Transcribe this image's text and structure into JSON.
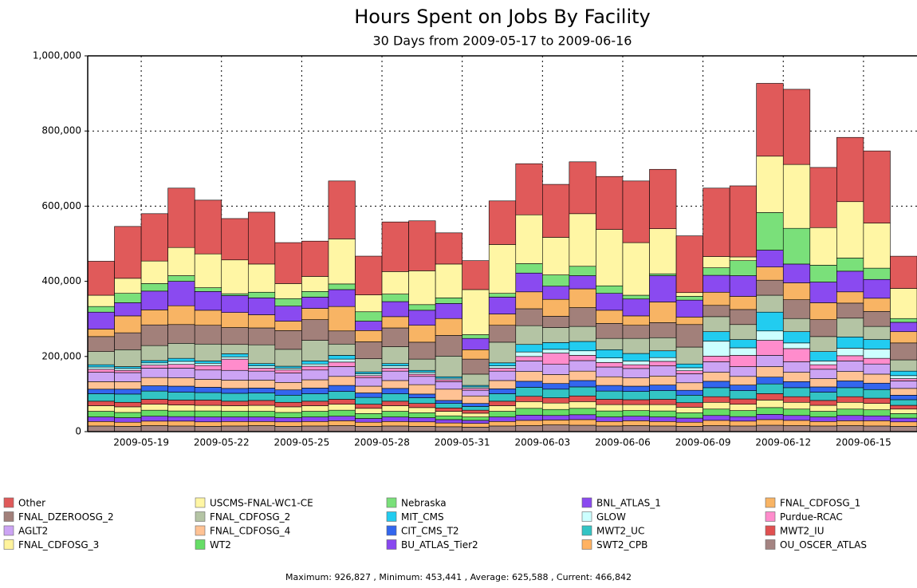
{
  "chart_data": {
    "type": "stacked_bar",
    "title": "Hours Spent on Jobs By Facility",
    "subtitle": "30 Days from 2009-05-17 to 2009-06-16",
    "footer": "Maximum: 926,827 , Minimum: 453,441 , Average: 625,588 , Current: 466,842",
    "categories": [
      null,
      null,
      "2009-05-19",
      null,
      null,
      "2009-05-22",
      null,
      null,
      "2009-05-25",
      null,
      null,
      "2009-05-28",
      null,
      null,
      "2009-05-31",
      null,
      null,
      "2009-06-03",
      null,
      null,
      "2009-06-06",
      null,
      null,
      "2009-06-09",
      null,
      null,
      "2009-06-12",
      null,
      null,
      "2009-06-15",
      null
    ],
    "ylim": [
      0,
      1000000
    ],
    "yticks": [
      0,
      {
        "value": 200000,
        "label": "200,000"
      },
      {
        "value": 400000,
        "label": "400,000"
      },
      {
        "value": 600000,
        "label": "600,000"
      },
      {
        "value": 800000,
        "label": "800,000"
      },
      {
        "value": 1000000,
        "label": "1,000,000"
      }
    ],
    "grid": true,
    "series": [
      {
        "name": "Other",
        "color": "#e05a5a",
        "values": [
          90441,
          138000,
          126000,
          158000,
          143000,
          110000,
          138000,
          109000,
          94000,
          154000,
          103000,
          132000,
          133000,
          83000,
          77000,
          116000,
          136000,
          141000,
          138000,
          141000,
          164000,
          158000,
          151000,
          182000,
          189000,
          193827,
          200000,
          160000,
          171000,
          192000,
          85842
        ]
      },
      {
        "name": "USCMS-FNAL-WC1-CE",
        "color": "#fff6a4",
        "values": [
          30000,
          40000,
          60000,
          75000,
          90000,
          90000,
          75000,
          40000,
          40000,
          120000,
          45000,
          60000,
          90000,
          90000,
          120000,
          130000,
          130000,
          100000,
          140000,
          150000,
          140000,
          120000,
          10000,
          30000,
          10000,
          150000,
          170000,
          100000,
          150000,
          120000,
          80000
        ]
      },
      {
        "name": "Nebraska",
        "color": "#7ae07a",
        "values": [
          15000,
          25000,
          20000,
          15000,
          10000,
          5000,
          15000,
          20000,
          15000,
          15000,
          25000,
          20000,
          15000,
          15000,
          10000,
          10000,
          25000,
          30000,
          25000,
          20000,
          10000,
          5000,
          10000,
          20000,
          40000,
          100000,
          95000,
          45000,
          35000,
          30000,
          10000
        ]
      },
      {
        "name": "BNL_ATLAS_1",
        "color": "#8a4af0",
        "values": [
          45000,
          35000,
          50000,
          65000,
          50000,
          45000,
          45000,
          40000,
          30000,
          45000,
          25000,
          40000,
          40000,
          40000,
          30000,
          45000,
          50000,
          35000,
          35000,
          45000,
          45000,
          70000,
          45000,
          45000,
          55000,
          45000,
          50000,
          55000,
          55000,
          50000,
          25000
        ]
      },
      {
        "name": "FNAL_CDFOSG_1",
        "color": "#f8b464",
        "values": [
          20000,
          45000,
          40000,
          50000,
          40000,
          40000,
          35000,
          25000,
          30000,
          65000,
          30000,
          30000,
          45000,
          45000,
          25000,
          30000,
          45000,
          45000,
          50000,
          35000,
          25000,
          55000,
          20000,
          35000,
          35000,
          35000,
          45000,
          45000,
          30000,
          35000,
          30000
        ]
      },
      {
        "name": "FNAL_DZEROOSG_2",
        "color": "#a2807a",
        "values": [
          40000,
          45000,
          55000,
          50000,
          50000,
          45000,
          45000,
          50000,
          55000,
          35000,
          45000,
          50000,
          45000,
          55000,
          40000,
          45000,
          45000,
          30000,
          50000,
          40000,
          35000,
          40000,
          60000,
          30000,
          40000,
          40000,
          50000,
          45000,
          40000,
          40000,
          45000
        ]
      },
      {
        "name": "FNAL_CDFOSG_2",
        "color": "#b4c4a4",
        "values": [
          35000,
          45000,
          40000,
          40000,
          45000,
          25000,
          50000,
          45000,
          55000,
          30000,
          35000,
          45000,
          30000,
          55000,
          30000,
          55000,
          50000,
          40000,
          40000,
          30000,
          40000,
          35000,
          45000,
          40000,
          40000,
          45000,
          35000,
          40000,
          50000,
          35000,
          30000
        ]
      },
      {
        "name": "MIT_CMS",
        "color": "#22ccf0",
        "values": [
          6000,
          5000,
          6000,
          8000,
          6000,
          8000,
          6000,
          5000,
          8000,
          10000,
          5000,
          6000,
          5000,
          4000,
          4000,
          8000,
          20000,
          18000,
          25000,
          22000,
          20000,
          18000,
          10000,
          25000,
          22000,
          50000,
          30000,
          25000,
          30000,
          25000,
          12000
        ]
      },
      {
        "name": "GLOW",
        "color": "#ccffff",
        "values": [
          6000,
          5000,
          6000,
          8000,
          6000,
          6000,
          6000,
          5000,
          6000,
          8000,
          5000,
          6000,
          5000,
          4000,
          4000,
          6000,
          12000,
          10000,
          12000,
          12000,
          10000,
          10000,
          8000,
          40000,
          20000,
          25000,
          15000,
          10000,
          20000,
          25000,
          8000
        ]
      },
      {
        "name": "Purdue-RCAC",
        "color": "#ff8ccc",
        "values": [
          8000,
          6000,
          8000,
          10000,
          12000,
          30000,
          8000,
          8000,
          10000,
          12000,
          6000,
          8000,
          6000,
          5000,
          5000,
          8000,
          12000,
          30000,
          14000,
          12000,
          10000,
          12000,
          8000,
          15000,
          30000,
          40000,
          35000,
          12000,
          14000,
          15000,
          6000
        ]
      },
      {
        "name": "AGLT2",
        "color": "#cca4f4",
        "values": [
          25000,
          24000,
          25000,
          26000,
          25000,
          26000,
          24000,
          25000,
          26000,
          26000,
          22000,
          25000,
          22000,
          20000,
          15000,
          25000,
          28000,
          27000,
          28000,
          26000,
          25000,
          27000,
          24000,
          28000,
          26000,
          30000,
          28000,
          25000,
          28000,
          27000,
          20000
        ]
      },
      {
        "name": "FNAL_CDFOSG_4",
        "color": "#ffc294",
        "values": [
          20000,
          20000,
          22000,
          22000,
          21000,
          22000,
          21000,
          20000,
          22000,
          24000,
          18000,
          21000,
          25000,
          30000,
          20000,
          22000,
          26000,
          24000,
          25000,
          23000,
          22000,
          24000,
          20000,
          24000,
          23000,
          28000,
          25000,
          22000,
          25000,
          24000,
          18000
        ]
      },
      {
        "name": "CIT_CMS_T2",
        "color": "#3366ee",
        "values": [
          12000,
          13000,
          14000,
          16000,
          14000,
          13000,
          13000,
          14000,
          15000,
          16000,
          12000,
          14000,
          10000,
          8000,
          8000,
          13000,
          16000,
          15000,
          17000,
          15000,
          14000,
          15000,
          13000,
          17000,
          15000,
          18000,
          16000,
          14000,
          18000,
          17000,
          12000
        ]
      },
      {
        "name": "MWT2_UC",
        "color": "#33c4c4",
        "values": [
          20000,
          22000,
          22000,
          21000,
          20000,
          21000,
          20000,
          19000,
          20000,
          21000,
          18000,
          20000,
          15000,
          12000,
          10000,
          20000,
          24000,
          23000,
          24000,
          22000,
          22000,
          23000,
          20000,
          24000,
          22000,
          26000,
          24000,
          22000,
          24000,
          23000,
          15000
        ]
      },
      {
        "name": "MWT2_IU",
        "color": "#e05050",
        "values": [
          12000,
          12000,
          13000,
          13000,
          14000,
          12000,
          13000,
          12000,
          12000,
          13000,
          11000,
          12000,
          11000,
          9000,
          8000,
          12000,
          14000,
          14000,
          15000,
          14000,
          13000,
          14000,
          12000,
          15000,
          14000,
          17000,
          15000,
          13000,
          15000,
          14000,
          10000
        ]
      },
      {
        "name": "FNAL_CDFOSG_3",
        "color": "#fff39c",
        "values": [
          15000,
          15000,
          16000,
          16000,
          15000,
          15000,
          16000,
          15000,
          15000,
          16000,
          14000,
          15000,
          14000,
          12000,
          10000,
          15000,
          18000,
          17000,
          18000,
          17000,
          16000,
          17000,
          15000,
          18000,
          17000,
          20000,
          18000,
          16000,
          18000,
          17000,
          12000
        ]
      },
      {
        "name": "WT2",
        "color": "#66dd66",
        "values": [
          15000,
          14000,
          16000,
          15000,
          16000,
          15000,
          15000,
          14000,
          15000,
          16000,
          13000,
          15000,
          13000,
          10000,
          9000,
          15000,
          18000,
          16000,
          17000,
          16000,
          15000,
          16000,
          14000,
          17000,
          16000,
          18000,
          17000,
          15000,
          17000,
          16000,
          12000
        ]
      },
      {
        "name": "BU_ATLAS_Tier2",
        "color": "#8848f0",
        "values": [
          12000,
          12000,
          13000,
          12000,
          13000,
          12000,
          12000,
          11000,
          12000,
          12000,
          10000,
          12000,
          11000,
          9000,
          8000,
          12000,
          14000,
          12000,
          13000,
          12000,
          12000,
          12000,
          11000,
          13000,
          12000,
          14000,
          13000,
          12000,
          14000,
          13000,
          10000
        ]
      },
      {
        "name": "SWT2_CPB",
        "color": "#ffb262",
        "values": [
          12000,
          11000,
          12000,
          13000,
          12000,
          12000,
          11000,
          12000,
          12000,
          13000,
          11000,
          12000,
          12000,
          10000,
          10000,
          12000,
          14000,
          13000,
          15000,
          12000,
          13000,
          12000,
          11000,
          14000,
          13000,
          15000,
          14000,
          12000,
          13000,
          14000,
          12000
        ]
      },
      {
        "name": "OU_OSCER_ATLAS",
        "color": "#a48482",
        "values": [
          15000,
          14000,
          16000,
          15000,
          14000,
          15000,
          16000,
          14000,
          15000,
          16000,
          14000,
          15000,
          14000,
          13000,
          12000,
          15000,
          16000,
          18000,
          17000,
          15000,
          16000,
          15000,
          14000,
          16000,
          15000,
          17000,
          16000,
          15000,
          16000,
          15000,
          14000
        ]
      }
    ]
  }
}
